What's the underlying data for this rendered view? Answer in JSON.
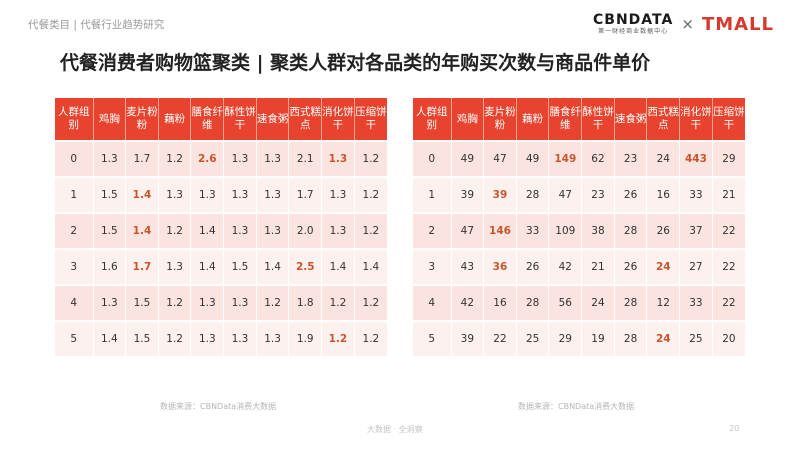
{
  "breadcrumb": "代餐类目 | 代餐行业趋势研究",
  "logos": {
    "cbn_main": "CBNDATA",
    "cbn_sub": "第一财经商业数据中心",
    "times": "×",
    "tmall": "TMALL"
  },
  "title": "代餐消费者购物篮聚类 | 聚类人群对各品类的年购买次数与商品件单价",
  "highlight_color": "#c9552c",
  "header_color": "#e8432e",
  "left_table": {
    "headers": [
      "人群组别",
      "鸡胸",
      "麦片粉粉",
      "藕粉",
      "膳食纤维",
      "酥性饼干",
      "速食粥",
      "西式糕点",
      "消化饼干",
      "压缩饼干"
    ],
    "rows": [
      [
        "0",
        "1.3",
        "1.7",
        "1.2",
        "2.6",
        "1.3",
        "1.3",
        "2.1",
        "1.3",
        "1.2"
      ],
      [
        "1",
        "1.5",
        "1.4",
        "1.3",
        "1.3",
        "1.3",
        "1.3",
        "1.7",
        "1.3",
        "1.2"
      ],
      [
        "2",
        "1.5",
        "1.4",
        "1.2",
        "1.4",
        "1.3",
        "1.3",
        "2.0",
        "1.3",
        "1.2"
      ],
      [
        "3",
        "1.6",
        "1.7",
        "1.3",
        "1.4",
        "1.5",
        "1.4",
        "2.5",
        "1.4",
        "1.4"
      ],
      [
        "4",
        "1.3",
        "1.5",
        "1.2",
        "1.3",
        "1.3",
        "1.2",
        "1.8",
        "1.2",
        "1.2"
      ],
      [
        "5",
        "1.4",
        "1.5",
        "1.2",
        "1.3",
        "1.3",
        "1.3",
        "1.9",
        "1.2",
        "1.2"
      ]
    ],
    "highlights": [
      [
        0,
        4
      ],
      [
        0,
        8
      ],
      [
        1,
        2
      ],
      [
        2,
        2
      ],
      [
        3,
        2
      ],
      [
        3,
        7
      ],
      [
        5,
        8
      ]
    ]
  },
  "right_table": {
    "headers": [
      "人群组别",
      "鸡胸",
      "麦片粉粉",
      "藕粉",
      "膳食纤维",
      "酥性饼干",
      "速食粥",
      "西式糕点",
      "消化饼干",
      "压缩饼干"
    ],
    "rows": [
      [
        "0",
        "49",
        "47",
        "49",
        "149",
        "62",
        "23",
        "24",
        "443",
        "29"
      ],
      [
        "1",
        "39",
        "39",
        "28",
        "47",
        "23",
        "26",
        "16",
        "33",
        "21"
      ],
      [
        "2",
        "47",
        "146",
        "33",
        "109",
        "38",
        "28",
        "26",
        "37",
        "22"
      ],
      [
        "3",
        "43",
        "36",
        "26",
        "42",
        "21",
        "26",
        "24",
        "27",
        "22"
      ],
      [
        "4",
        "42",
        "16",
        "28",
        "56",
        "24",
        "28",
        "12",
        "33",
        "22"
      ],
      [
        "5",
        "39",
        "22",
        "25",
        "29",
        "19",
        "28",
        "24",
        "25",
        "20"
      ]
    ],
    "highlights": [
      [
        0,
        4
      ],
      [
        0,
        8
      ],
      [
        1,
        2
      ],
      [
        2,
        2
      ],
      [
        3,
        2
      ],
      [
        3,
        7
      ],
      [
        5,
        7
      ]
    ]
  },
  "source_left": "数据来源：CBNData消费大数据",
  "source_right": "数据来源：CBNData消费大数据",
  "footer": "大数据 · 全洞察",
  "page_number": "20"
}
